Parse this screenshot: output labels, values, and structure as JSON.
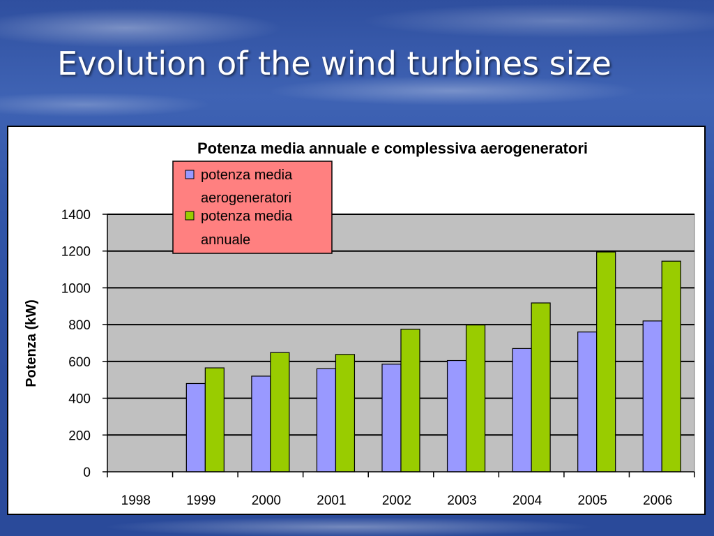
{
  "slide": {
    "title": "Evolution of the wind turbines size"
  },
  "colors": {
    "series_1": "#9999ff",
    "series_2": "#99cc00",
    "plot_background": "#c0c0c0",
    "legend_background": "#ff8080"
  },
  "chart_data": {
    "type": "bar",
    "title": "Potenza media annuale e complessiva aerogeneratori",
    "xlabel": "",
    "ylabel": "Potenza (kW)",
    "ylim": [
      0,
      1400
    ],
    "yticks": [
      "0",
      "200",
      "400",
      "600",
      "800",
      "1000",
      "1200",
      "1400"
    ],
    "categories": [
      "1998",
      "1999",
      "2000",
      "2001",
      "2002",
      "2003",
      "2004",
      "2005",
      "2006"
    ],
    "grid": true,
    "legend_position": "top-center",
    "series": [
      {
        "name": "potenza media aerogeneratori",
        "legend_lines": [
          "potenza media",
          "aerogeneratori"
        ],
        "values": [
          null,
          480,
          520,
          560,
          585,
          605,
          670,
          760,
          820
        ]
      },
      {
        "name": "potenza media annuale",
        "legend_lines": [
          "potenza media",
          "annuale"
        ],
        "values": [
          null,
          565,
          648,
          638,
          775,
          798,
          918,
          1195,
          1145
        ]
      }
    ]
  }
}
